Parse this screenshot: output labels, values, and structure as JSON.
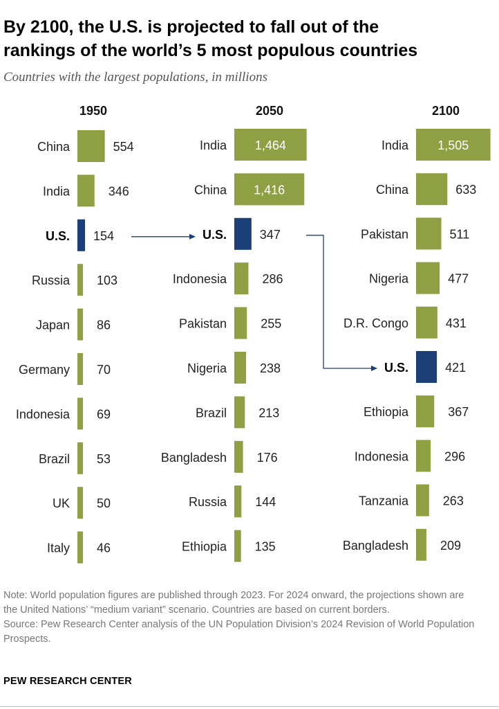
{
  "header": {
    "title_line1": "By 2100, the U.S. is projected to fall out of the",
    "title_line2": "rankings of the world’s 5 most populous countries",
    "subtitle": "Countries with the largest populations, in millions"
  },
  "colors": {
    "bar": "#8f9f44",
    "highlight": "#1c3f77",
    "arrow": "#1c3f77",
    "text": "#222222",
    "label_on_bar": "#ffffff"
  },
  "chart_data": {
    "type": "bar",
    "orientation": "horizontal",
    "unit": "millions",
    "highlight": "U.S.",
    "columns": [
      {
        "year": "1950",
        "rows": [
          {
            "country": "China",
            "value": 554,
            "label": "554"
          },
          {
            "country": "India",
            "value": 346,
            "label": "346"
          },
          {
            "country": "U.S.",
            "value": 154,
            "label": "154"
          },
          {
            "country": "Russia",
            "value": 103,
            "label": "103"
          },
          {
            "country": "Japan",
            "value": 86,
            "label": "86"
          },
          {
            "country": "Germany",
            "value": 70,
            "label": "70"
          },
          {
            "country": "Indonesia",
            "value": 69,
            "label": "69"
          },
          {
            "country": "Brazil",
            "value": 53,
            "label": "53"
          },
          {
            "country": "UK",
            "value": 50,
            "label": "50"
          },
          {
            "country": "Italy",
            "value": 46,
            "label": "46"
          }
        ]
      },
      {
        "year": "2050",
        "rows": [
          {
            "country": "India",
            "value": 1464,
            "label": "1,464"
          },
          {
            "country": "China",
            "value": 1416,
            "label": "1,416"
          },
          {
            "country": "U.S.",
            "value": 347,
            "label": "347"
          },
          {
            "country": "Indonesia",
            "value": 286,
            "label": "286"
          },
          {
            "country": "Pakistan",
            "value": 255,
            "label": "255"
          },
          {
            "country": "Nigeria",
            "value": 238,
            "label": "238"
          },
          {
            "country": "Brazil",
            "value": 213,
            "label": "213"
          },
          {
            "country": "Bangladesh",
            "value": 176,
            "label": "176"
          },
          {
            "country": "Russia",
            "value": 144,
            "label": "144"
          },
          {
            "country": "Ethiopia",
            "value": 135,
            "label": "135"
          }
        ]
      },
      {
        "year": "2100",
        "rows": [
          {
            "country": "India",
            "value": 1505,
            "label": "1,505"
          },
          {
            "country": "China",
            "value": 633,
            "label": "633"
          },
          {
            "country": "Pakistan",
            "value": 511,
            "label": "511"
          },
          {
            "country": "Nigeria",
            "value": 477,
            "label": "477"
          },
          {
            "country": "D.R. Congo",
            "value": 431,
            "label": "431"
          },
          {
            "country": "U.S.",
            "value": 421,
            "label": "421"
          },
          {
            "country": "Ethiopia",
            "value": 367,
            "label": "367"
          },
          {
            "country": "Indonesia",
            "value": 296,
            "label": "296"
          },
          {
            "country": "Tanzania",
            "value": 263,
            "label": "263"
          },
          {
            "country": "Bangladesh",
            "value": 209,
            "label": "209"
          }
        ]
      }
    ]
  },
  "footer": {
    "note": "Note: World population figures are published through 2023. For 2024 onward, the projections shown are the United Nations’ “medium variant” scenario. Countries are based on current borders.",
    "source": "Source: Pew Research Center analysis of the UN Population Division’s 2024 Revision of World Population Prospects.",
    "brand": "PEW RESEARCH CENTER"
  }
}
